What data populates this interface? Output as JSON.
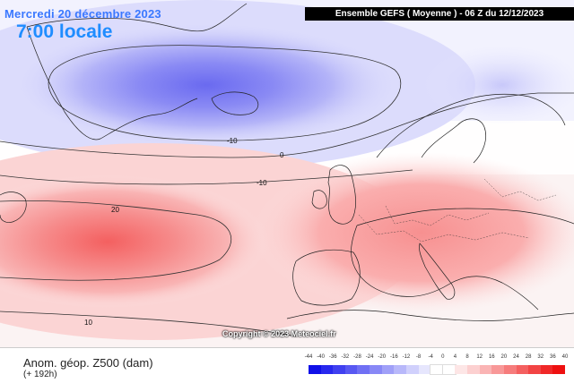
{
  "header": {
    "date_line": "Mercredi 20 décembre 2023",
    "time_line": "7:00 locale",
    "run_banner": "Ensemble GEFS  ( Moyenne )  - 06 Z du 12/12/2023"
  },
  "map": {
    "contour_labels": [
      "-10",
      "0",
      "-10",
      "20",
      "10"
    ],
    "copyright": "Copyright © 2023 Meteociel.fr"
  },
  "legend": {
    "variable": "Anom. géop. Z500 (dam)",
    "lead_time": "(+ 192h)",
    "scale_values": [
      "-44",
      "-40",
      "-36",
      "-32",
      "-28",
      "-24",
      "-20",
      "-16",
      "-12",
      "-8",
      "-4",
      "0",
      "4",
      "8",
      "12",
      "16",
      "20",
      "24",
      "28",
      "32",
      "36",
      "40"
    ],
    "scale_colors": [
      "#1010e8",
      "#2828ee",
      "#4040f0",
      "#5858f2",
      "#7070f4",
      "#8888f6",
      "#a0a0f8",
      "#b8b8fa",
      "#d0d0fc",
      "#e6e6fd",
      "#ffffff",
      "#ffffff",
      "#fde6e6",
      "#fcd0d0",
      "#fab4b4",
      "#f89898",
      "#f67c7c",
      "#f46060",
      "#f24444",
      "#f02828",
      "#ee1010"
    ]
  }
}
